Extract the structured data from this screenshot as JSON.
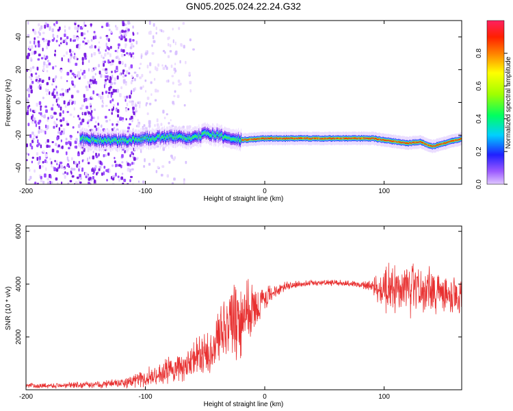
{
  "title": "GN05.2025.024.22.24.G32",
  "chart_data": [
    {
      "type": "heatmap",
      "xlabel": "Height of straight line (km)",
      "ylabel": "Frequency (Hz)",
      "xlim": [
        -200,
        165
      ],
      "ylim": [
        -50,
        50
      ],
      "xticks": [
        "-200",
        "-100",
        "0",
        "100"
      ],
      "yticks": [
        "-40",
        "-20",
        "0",
        "20",
        "40"
      ],
      "colorbar": {
        "label": "Normalized spectral amplitude",
        "range": [
          0,
          1
        ],
        "ticks": [
          "0.0",
          "0.2",
          "0.4",
          "0.6",
          "0.8"
        ]
      },
      "signal_track": {
        "x": [
          -155,
          -140,
          -120,
          -100,
          -80,
          -60,
          -50,
          -40,
          -30,
          -20,
          0,
          20,
          40,
          60,
          80,
          90,
          100,
          110,
          120,
          130,
          140,
          150,
          160,
          165
        ],
        "frequency": [
          -22,
          -23,
          -23.5,
          -22,
          -21,
          -22,
          -19,
          -20,
          -22,
          -23,
          -22,
          -22,
          -22,
          -22,
          -22,
          -22,
          -23,
          -24,
          -25,
          -24,
          -27,
          -25,
          -23,
          -22
        ]
      },
      "noise_region_x": [
        -200,
        -75
      ],
      "grid": false
    },
    {
      "type": "line",
      "xlabel": "Height of straight line (km)",
      "ylabel": "SNR (10 * v/v)",
      "xlim": [
        -200,
        165
      ],
      "ylim": [
        0,
        6200
      ],
      "xticks": [
        "-200",
        "-100",
        "0",
        "100"
      ],
      "yticks": [
        "2000",
        "4000",
        "6000"
      ],
      "series": [
        {
          "color": "#e83030",
          "envelope": {
            "x": [
              -200,
              -150,
              -120,
              -100,
              -90,
              -80,
              -70,
              -60,
              -50,
              -40,
              -35,
              -30,
              -25,
              -20,
              -15,
              -10,
              0,
              10,
              20,
              30,
              40,
              60,
              80,
              90,
              100,
              105,
              110,
              120,
              130,
              140,
              150,
              160,
              165
            ],
            "mean": [
              150,
              180,
              250,
              450,
              550,
              700,
              900,
              1100,
              1400,
              1800,
              2300,
              2600,
              2400,
              2700,
              2900,
              3000,
              3400,
              3800,
              3950,
              4000,
              4050,
              4050,
              4000,
              3900,
              3800,
              3900,
              3800,
              3800,
              3700,
              3800,
              3700,
              3600,
              3500
            ],
            "spread": [
              100,
              150,
              200,
              400,
              500,
              600,
              700,
              800,
              1000,
              1300,
              1500,
              1600,
              1800,
              1600,
              1400,
              1200,
              600,
              300,
              200,
              150,
              120,
              120,
              150,
              300,
              900,
              1200,
              1300,
              1200,
              1100,
              1000,
              900,
              800,
              700
            ]
          }
        }
      ],
      "grid": false
    }
  ]
}
